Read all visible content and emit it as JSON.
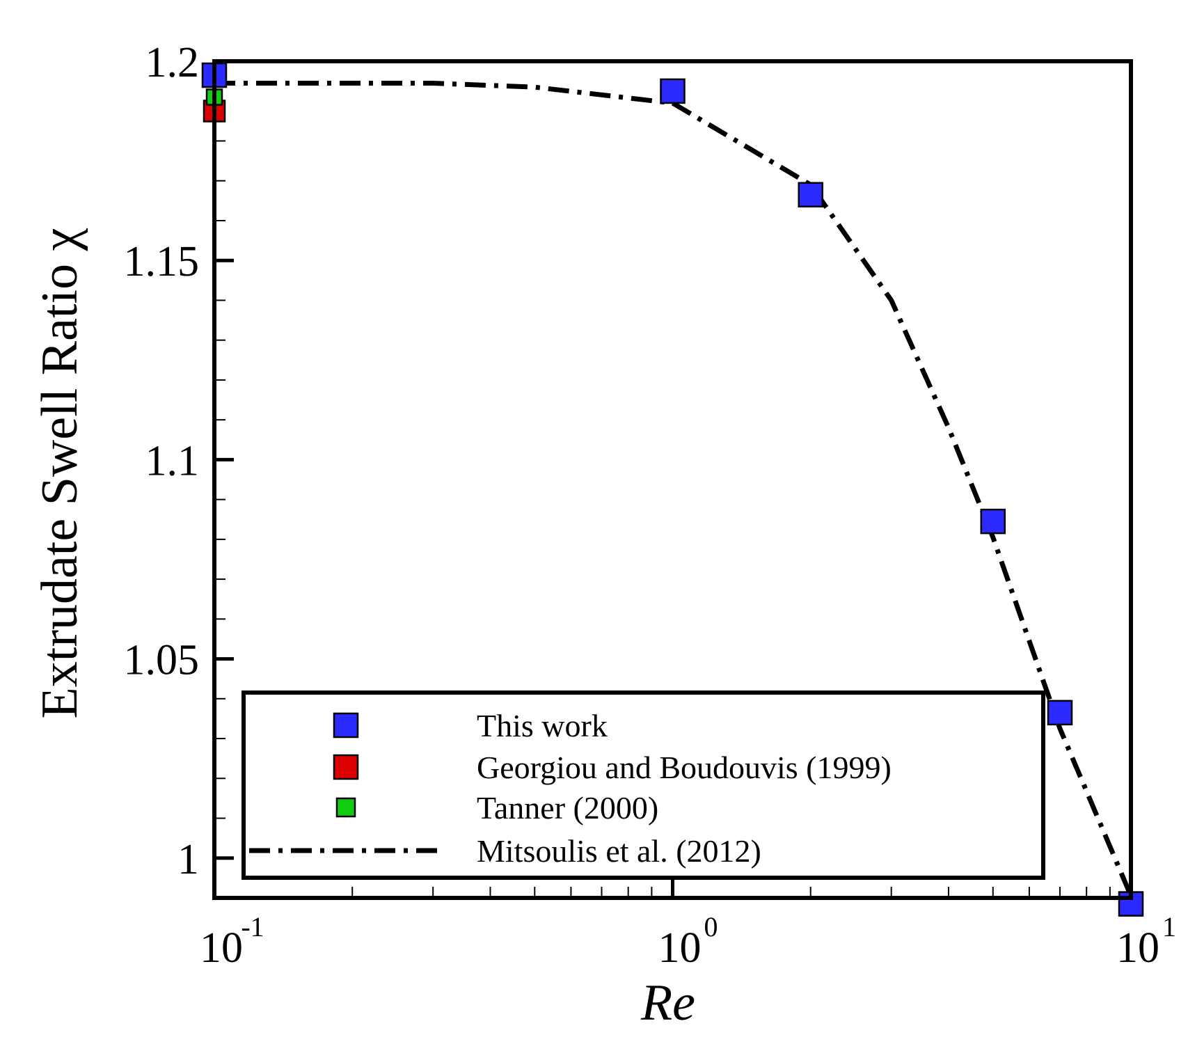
{
  "chart_data": {
    "type": "scatter",
    "xlabel": "Re",
    "ylabel": "Extrudate Swell Ratio χ",
    "xscale": "log",
    "xlim": [
      0.1,
      10
    ],
    "ylim": [
      0.99,
      1.2
    ],
    "x_tick_labels": [
      {
        "value": 0.1,
        "base": "10",
        "exp": "-1"
      },
      {
        "value": 1,
        "base": "10",
        "exp": "0"
      },
      {
        "value": 10,
        "base": "10",
        "exp": "1"
      }
    ],
    "y_ticks": [
      1,
      1.05,
      1.1,
      1.15,
      1.2
    ],
    "y_tick_labels": [
      "1",
      "1.05",
      "1.1",
      "1.15",
      "1.2"
    ],
    "grid": false,
    "legend_position": "bottom",
    "series": [
      {
        "name": "This work",
        "kind": "marker",
        "color": "#2b2bff",
        "points": [
          [
            0.1,
            1.1965
          ],
          [
            1,
            1.1925
          ],
          [
            2,
            1.1665
          ],
          [
            5,
            1.0845
          ],
          [
            7,
            1.0365
          ],
          [
            10,
            0.9885
          ]
        ]
      },
      {
        "name": "Georgiou and Boudouvis (1999)",
        "kind": "marker",
        "color": "#dd0000",
        "points": [
          [
            0.1,
            1.1875
          ]
        ]
      },
      {
        "name": "Tanner (2000)",
        "kind": "marker",
        "color": "#11cc11",
        "points": [
          [
            0.1,
            1.191
          ]
        ]
      },
      {
        "name": "Mitsoulis et al. (2012)",
        "kind": "line",
        "style": "dash-dot",
        "color": "#000000",
        "points": [
          [
            0.1,
            1.1945
          ],
          [
            0.3,
            1.1945
          ],
          [
            0.5,
            1.1935
          ],
          [
            1,
            1.1895
          ],
          [
            2,
            1.169
          ],
          [
            3,
            1.14
          ],
          [
            4,
            1.108
          ],
          [
            5,
            1.0805
          ],
          [
            7,
            1.0325
          ],
          [
            10,
            0.9905
          ]
        ]
      }
    ]
  }
}
